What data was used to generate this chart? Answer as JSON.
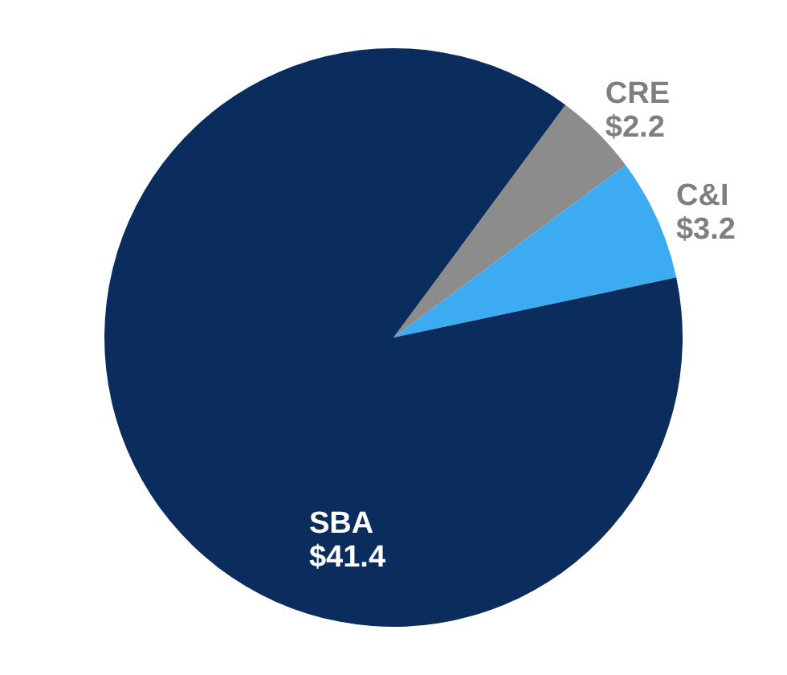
{
  "chart_data": {
    "type": "pie",
    "categories": [
      "CRE",
      "C&I",
      "SBA"
    ],
    "values": [
      2.2,
      3.2,
      41.4
    ],
    "value_labels": [
      "$2.2",
      "$3.2",
      "$41.4"
    ],
    "colors": [
      "#8c8c8c",
      "#3cabf2",
      "#0b2d5e"
    ]
  }
}
